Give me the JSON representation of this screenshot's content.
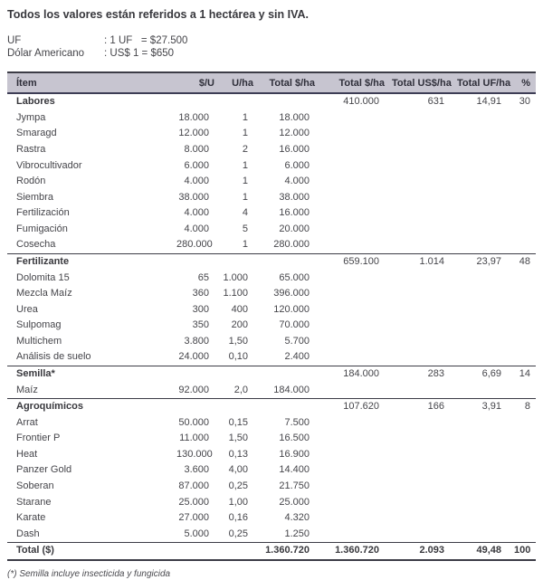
{
  "title": "Todos los valores están referidos a 1 hectárea y sin IVA.",
  "exchange": {
    "rows": [
      {
        "label": "UF",
        "value": ": 1 UF   = $27.500"
      },
      {
        "label": "Dólar Americano",
        "value": ": US$ 1 = $650"
      }
    ]
  },
  "table": {
    "columns": [
      "Ítem",
      "$/U",
      "U/ha",
      "Total $/ha",
      "Total $/ha",
      "Total US$/ha",
      "Total UF/ha",
      "%"
    ],
    "rows": [
      {
        "section": true,
        "total": false,
        "cells": [
          "Labores",
          "",
          "",
          "",
          "410.000",
          "631",
          "14,91",
          "30"
        ]
      },
      {
        "section": false,
        "total": false,
        "cells": [
          "Jympa",
          "18.000",
          "1",
          "18.000",
          "",
          "",
          "",
          ""
        ]
      },
      {
        "section": false,
        "total": false,
        "cells": [
          "Smaragd",
          "12.000",
          "1",
          "12.000",
          "",
          "",
          "",
          ""
        ]
      },
      {
        "section": false,
        "total": false,
        "cells": [
          "Rastra",
          "8.000",
          "2",
          "16.000",
          "",
          "",
          "",
          ""
        ]
      },
      {
        "section": false,
        "total": false,
        "cells": [
          "Vibrocultivador",
          "6.000",
          "1",
          "6.000",
          "",
          "",
          "",
          ""
        ]
      },
      {
        "section": false,
        "total": false,
        "cells": [
          "Rodón",
          "4.000",
          "1",
          "4.000",
          "",
          "",
          "",
          ""
        ]
      },
      {
        "section": false,
        "total": false,
        "cells": [
          "Siembra",
          "38.000",
          "1",
          "38.000",
          "",
          "",
          "",
          ""
        ]
      },
      {
        "section": false,
        "total": false,
        "cells": [
          "Fertilización",
          "4.000",
          "4",
          "16.000",
          "",
          "",
          "",
          ""
        ]
      },
      {
        "section": false,
        "total": false,
        "cells": [
          "Fumigación",
          "4.000",
          "5",
          "20.000",
          "",
          "",
          "",
          ""
        ]
      },
      {
        "section": false,
        "total": false,
        "cells": [
          "Cosecha",
          "280.000",
          "1",
          "280.000",
          "",
          "",
          "",
          ""
        ]
      },
      {
        "section": true,
        "total": false,
        "cells": [
          "Fertilizante",
          "",
          "",
          "",
          "659.100",
          "1.014",
          "23,97",
          "48"
        ]
      },
      {
        "section": false,
        "total": false,
        "cells": [
          "Dolomita 15",
          "65",
          "1.000",
          "65.000",
          "",
          "",
          "",
          ""
        ]
      },
      {
        "section": false,
        "total": false,
        "cells": [
          "Mezcla Maíz",
          "360",
          "1.100",
          "396.000",
          "",
          "",
          "",
          ""
        ]
      },
      {
        "section": false,
        "total": false,
        "cells": [
          "Urea",
          "300",
          "400",
          "120.000",
          "",
          "",
          "",
          ""
        ]
      },
      {
        "section": false,
        "total": false,
        "cells": [
          "Sulpomag",
          "350",
          "200",
          "70.000",
          "",
          "",
          "",
          ""
        ]
      },
      {
        "section": false,
        "total": false,
        "cells": [
          "Multichem",
          "3.800",
          "1,50",
          "5.700",
          "",
          "",
          "",
          ""
        ]
      },
      {
        "section": false,
        "total": false,
        "cells": [
          "Análisis de suelo",
          "24.000",
          "0,10",
          "2.400",
          "",
          "",
          "",
          ""
        ]
      },
      {
        "section": true,
        "total": false,
        "cells": [
          "Semilla*",
          "",
          "",
          "",
          "184.000",
          "283",
          "6,69",
          "14"
        ]
      },
      {
        "section": false,
        "total": false,
        "cells": [
          "Maíz",
          "92.000",
          "2,0",
          "184.000",
          "",
          "",
          "",
          ""
        ]
      },
      {
        "section": true,
        "total": false,
        "cells": [
          "Agroquímicos",
          "",
          "",
          "",
          "107.620",
          "166",
          "3,91",
          "8"
        ]
      },
      {
        "section": false,
        "total": false,
        "cells": [
          "Arrat",
          "50.000",
          "0,15",
          "7.500",
          "",
          "",
          "",
          ""
        ]
      },
      {
        "section": false,
        "total": false,
        "cells": [
          "Frontier P",
          "11.000",
          "1,50",
          "16.500",
          "",
          "",
          "",
          ""
        ]
      },
      {
        "section": false,
        "total": false,
        "cells": [
          "Heat",
          "130.000",
          "0,13",
          "16.900",
          "",
          "",
          "",
          ""
        ]
      },
      {
        "section": false,
        "total": false,
        "cells": [
          "Panzer Gold",
          "3.600",
          "4,00",
          "14.400",
          "",
          "",
          "",
          ""
        ]
      },
      {
        "section": false,
        "total": false,
        "cells": [
          "Soberan",
          "87.000",
          "0,25",
          "21.750",
          "",
          "",
          "",
          ""
        ]
      },
      {
        "section": false,
        "total": false,
        "cells": [
          "Starane",
          "25.000",
          "1,00",
          "25.000",
          "",
          "",
          "",
          ""
        ]
      },
      {
        "section": false,
        "total": false,
        "cells": [
          "Karate",
          "27.000",
          "0,16",
          "4.320",
          "",
          "",
          "",
          ""
        ]
      },
      {
        "section": false,
        "total": false,
        "cells": [
          "Dash",
          "5.000",
          "0,25",
          "1.250",
          "",
          "",
          "",
          ""
        ]
      },
      {
        "section": true,
        "total": true,
        "cells": [
          "Total ($)",
          "",
          "",
          "1.360.720",
          "1.360.720",
          "2.093",
          "49,48",
          "100"
        ]
      }
    ]
  },
  "footnote": "(*) Semilla incluye insecticida y fungicida",
  "colors": {
    "header_bg": "#c7c5d0",
    "border": "#3c3c46",
    "text": "#3f3f44"
  }
}
